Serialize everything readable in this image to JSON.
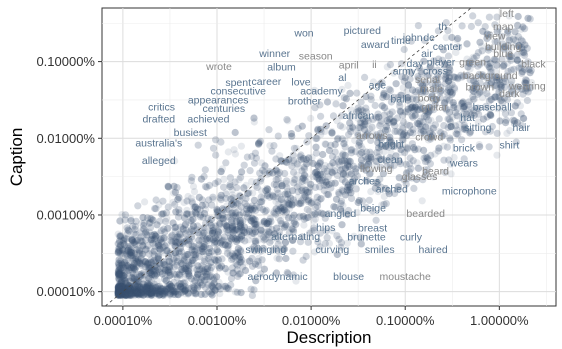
{
  "chart_data": {
    "type": "scatter",
    "title": "",
    "xlabel": "Description",
    "ylabel": "Caption",
    "xscale": "log",
    "yscale": "log",
    "xlim": [
      6e-07,
      0.04
    ],
    "ylim": [
      6.5e-07,
      0.005
    ],
    "x_ticks": [
      1e-06,
      1e-05,
      0.0001,
      0.001,
      0.01
    ],
    "x_tick_labels": [
      "0.00010%",
      "0.00100%",
      "0.01000%",
      "0.10000%",
      "1.00000%"
    ],
    "y_ticks": [
      1e-06,
      1e-05,
      0.0001,
      0.001
    ],
    "y_tick_labels": [
      "0.00010%",
      "0.00100%",
      "0.01000%",
      "0.10000%"
    ],
    "grid": true,
    "reference_line": "y = x (dashed)",
    "point_color": "#3e5573",
    "word_colors": {
      "caption_leaning": "#5a7590",
      "description_leaning": "#888888"
    },
    "labels": [
      {
        "word": "won",
        "x": 8.4e-05,
        "y": 0.0024,
        "lean": "caption"
      },
      {
        "word": "pictured",
        "x": 0.00035,
        "y": 0.0026,
        "lean": "caption"
      },
      {
        "word": "award",
        "x": 0.00048,
        "y": 0.0017,
        "lean": "caption"
      },
      {
        "word": "time",
        "x": 0.0009,
        "y": 0.0019,
        "lean": "caption"
      },
      {
        "word": "john",
        "x": 0.0012,
        "y": 0.0021,
        "lean": "caption"
      },
      {
        "word": "th",
        "x": 0.0025,
        "y": 0.0029,
        "lean": "caption"
      },
      {
        "word": "de",
        "x": 0.0018,
        "y": 0.0021,
        "lean": "caption"
      },
      {
        "word": "left",
        "x": 0.012,
        "y": 0.0043,
        "lean": "description"
      },
      {
        "word": "map",
        "x": 0.011,
        "y": 0.0029,
        "lean": "description"
      },
      {
        "word": "view",
        "x": 0.009,
        "y": 0.0022,
        "lean": "description"
      },
      {
        "word": "building",
        "x": 0.011,
        "y": 0.0016,
        "lean": "description"
      },
      {
        "word": "blue",
        "x": 0.011,
        "y": 0.0013,
        "lean": "description"
      },
      {
        "word": "black",
        "x": 0.023,
        "y": 0.00095,
        "lean": "description"
      },
      {
        "word": "center",
        "x": 0.0028,
        "y": 0.0016,
        "lean": "caption"
      },
      {
        "word": "winner",
        "x": 4.1e-05,
        "y": 0.0013,
        "lean": "caption"
      },
      {
        "word": "season",
        "x": 0.000112,
        "y": 0.0012,
        "lean": "description"
      },
      {
        "word": "air",
        "x": 0.0017,
        "y": 0.0013,
        "lean": "caption"
      },
      {
        "word": "green",
        "x": 0.0052,
        "y": 0.001,
        "lean": "description"
      },
      {
        "word": "player",
        "x": 0.0024,
        "y": 0.001,
        "lean": "caption"
      },
      {
        "word": "wrote",
        "x": 1.05e-05,
        "y": 0.00088,
        "lean": "description"
      },
      {
        "word": "album",
        "x": 4.85e-05,
        "y": 0.00086,
        "lean": "caption"
      },
      {
        "word": "april",
        "x": 0.000251,
        "y": 0.00091,
        "lean": "description"
      },
      {
        "word": "ii",
        "x": 0.00047,
        "y": 0.00093,
        "lean": "description"
      },
      {
        "word": "day",
        "x": 0.00127,
        "y": 0.00096,
        "lean": "caption"
      },
      {
        "word": "army",
        "x": 0.00098,
        "y": 0.00077,
        "lean": "caption"
      },
      {
        "word": "cross",
        "x": 0.0021,
        "y": 0.00076,
        "lean": "caption"
      },
      {
        "word": "background",
        "x": 0.008,
        "y": 0.00067,
        "lean": "description"
      },
      {
        "word": "spent",
        "x": 1.68e-05,
        "y": 0.00054,
        "lean": "caption"
      },
      {
        "word": "career",
        "x": 3.35e-05,
        "y": 0.00056,
        "lean": "caption"
      },
      {
        "word": "love",
        "x": 7.8e-05,
        "y": 0.00055,
        "lean": "caption"
      },
      {
        "word": "al",
        "x": 0.000215,
        "y": 0.00063,
        "lean": "caption"
      },
      {
        "word": "age",
        "x": 0.000506,
        "y": 0.0005,
        "lean": "caption"
      },
      {
        "word": "serial",
        "x": 0.00173,
        "y": 0.00059,
        "lean": "description"
      },
      {
        "word": "brown",
        "x": 0.0062,
        "y": 0.00047,
        "lean": "description"
      },
      {
        "word": "wearing",
        "x": 0.0198,
        "y": 0.00049,
        "lean": "description"
      },
      {
        "word": "consecutive",
        "x": 1.68e-05,
        "y": 0.00042,
        "lean": "caption"
      },
      {
        "word": "academy",
        "x": 0.000129,
        "y": 0.00042,
        "lean": "caption"
      },
      {
        "word": "male",
        "x": 0.0019,
        "y": 0.00045,
        "lean": "description"
      },
      {
        "word": "dark",
        "x": 0.0128,
        "y": 0.00039,
        "lean": "description"
      },
      {
        "word": "appearances",
        "x": 1.03e-05,
        "y": 0.00032,
        "lean": "caption"
      },
      {
        "word": "brother",
        "x": 8.5e-05,
        "y": 0.00031,
        "lean": "caption"
      },
      {
        "word": "ball",
        "x": 0.00085,
        "y": 0.00033,
        "lean": "caption"
      },
      {
        "word": "body",
        "x": 0.0018,
        "y": 0.00034,
        "lean": "description"
      },
      {
        "word": "baseball",
        "x": 0.0084,
        "y": 0.00026,
        "lean": "caption"
      },
      {
        "word": "critics",
        "x": 2.58e-06,
        "y": 0.00026,
        "lean": "caption"
      },
      {
        "word": "centuries",
        "x": 1.18e-05,
        "y": 0.00025,
        "lean": "caption"
      },
      {
        "word": "guitar",
        "x": 0.00205,
        "y": 0.00026,
        "lean": "description"
      },
      {
        "word": "drafted",
        "x": 2.41e-06,
        "y": 0.00018,
        "lean": "caption"
      },
      {
        "word": "achieved",
        "x": 8.1e-06,
        "y": 0.00018,
        "lean": "caption"
      },
      {
        "word": "african",
        "x": 0.000318,
        "y": 0.0002,
        "lean": "caption"
      },
      {
        "word": "hat",
        "x": 0.0046,
        "y": 0.00019,
        "lean": "caption"
      },
      {
        "word": "sitting",
        "x": 0.0059,
        "y": 0.00014,
        "lean": "caption"
      },
      {
        "word": "hair",
        "x": 0.0171,
        "y": 0.00014,
        "lean": "caption"
      },
      {
        "word": "busiest",
        "x": 5.2e-06,
        "y": 0.00012,
        "lean": "caption"
      },
      {
        "word": "arrows",
        "x": 0.00044,
        "y": 0.00011,
        "lean": "description"
      },
      {
        "word": "crowd",
        "x": 0.0018,
        "y": 0.000106,
        "lean": "description"
      },
      {
        "word": "australia's",
        "x": 2.41e-06,
        "y": 8.8e-05,
        "lean": "caption"
      },
      {
        "word": "bright",
        "x": 0.00071,
        "y": 8.5e-05,
        "lean": "caption"
      },
      {
        "word": "brick",
        "x": 0.0042,
        "y": 7.6e-05,
        "lean": "caption"
      },
      {
        "word": "shirt",
        "x": 0.0128,
        "y": 8.3e-05,
        "lean": "caption"
      },
      {
        "word": "alleged",
        "x": 2.41e-06,
        "y": 5.2e-05,
        "lean": "caption"
      },
      {
        "word": "clean",
        "x": 0.00069,
        "y": 5.4e-05,
        "lean": "caption"
      },
      {
        "word": "wears",
        "x": 0.0042,
        "y": 4.8e-05,
        "lean": "caption"
      },
      {
        "word": "flowing",
        "x": 0.00049,
        "y": 4.1e-05,
        "lean": "description"
      },
      {
        "word": "beard",
        "x": 0.0021,
        "y": 3.8e-05,
        "lean": "description"
      },
      {
        "word": "arches",
        "x": 0.000368,
        "y": 2.8e-05,
        "lean": "caption"
      },
      {
        "word": "glasses",
        "x": 0.00142,
        "y": 3.2e-05,
        "lean": "description"
      },
      {
        "word": "arched",
        "x": 0.00072,
        "y": 2.2e-05,
        "lean": "caption"
      },
      {
        "word": "microphone",
        "x": 0.0048,
        "y": 2.1e-05,
        "lean": "caption"
      },
      {
        "word": "beige",
        "x": 0.000456,
        "y": 1.26e-05,
        "lean": "caption"
      },
      {
        "word": "angled",
        "x": 0.000205,
        "y": 1.06e-05,
        "lean": "caption"
      },
      {
        "word": "bearded",
        "x": 0.00165,
        "y": 1.06e-05,
        "lean": "description"
      },
      {
        "word": "hips",
        "x": 0.000143,
        "y": 7e-06,
        "lean": "caption"
      },
      {
        "word": "breast",
        "x": 0.00045,
        "y": 6.9e-06,
        "lean": "caption"
      },
      {
        "word": "brunette",
        "x": 0.000388,
        "y": 5.2e-06,
        "lean": "caption"
      },
      {
        "word": "alternating",
        "x": 6.85e-05,
        "y": 5.3e-06,
        "lean": "caption"
      },
      {
        "word": "curly",
        "x": 0.00115,
        "y": 5.2e-06,
        "lean": "caption"
      },
      {
        "word": "swinging",
        "x": 3.3e-05,
        "y": 3.6e-06,
        "lean": "caption"
      },
      {
        "word": "curving",
        "x": 0.000168,
        "y": 3.6e-06,
        "lean": "caption"
      },
      {
        "word": "smiles",
        "x": 0.000535,
        "y": 3.6e-06,
        "lean": "caption"
      },
      {
        "word": "haired",
        "x": 0.00198,
        "y": 3.6e-06,
        "lean": "caption"
      },
      {
        "word": "aerodynamic",
        "x": 4.4e-05,
        "y": 1.6e-06,
        "lean": "caption"
      },
      {
        "word": "blouse",
        "x": 0.00025,
        "y": 1.6e-06,
        "lean": "caption"
      },
      {
        "word": "moustache",
        "x": 0.001,
        "y": 1.6e-06,
        "lean": "description"
      }
    ]
  }
}
